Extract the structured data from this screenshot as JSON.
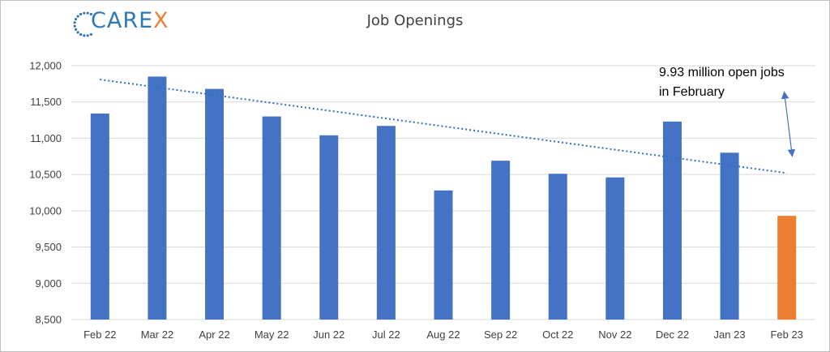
{
  "brand": {
    "logo_main": "CARE",
    "logo_accent": "X"
  },
  "colors": {
    "bar": "#4472c4",
    "highlight": "#ed7d31",
    "trendline": "#2e6fc0",
    "grid": "#d9d9d9"
  },
  "chart_data": {
    "type": "bar",
    "title": "Job Openings",
    "xlabel": "",
    "ylabel": "",
    "categories": [
      "Feb 22",
      "Mar 22",
      "Apr 22",
      "May 22",
      "Jun 22",
      "Jul 22",
      "Aug 22",
      "Sep 22",
      "Oct 22",
      "Nov 22",
      "Dec 22",
      "Jan 23",
      "Feb 23"
    ],
    "values": [
      11340,
      11850,
      11680,
      11300,
      11040,
      11170,
      10280,
      10690,
      10510,
      10460,
      11230,
      10800,
      9930
    ],
    "highlight_index": 12,
    "ylim": [
      8500,
      12000
    ],
    "yticks": [
      8500,
      9000,
      9500,
      10000,
      10500,
      11000,
      11500,
      12000
    ],
    "ytick_labels": [
      "8,500",
      "9,000",
      "9,500",
      "10,000",
      "10,500",
      "11,000",
      "11,500",
      "12,000"
    ],
    "grid": true,
    "trendline": {
      "type": "linear",
      "style": "dotted"
    },
    "annotation": {
      "line1": "9.93 million open jobs",
      "line2": "in February",
      "arrow": "double-headed"
    }
  }
}
